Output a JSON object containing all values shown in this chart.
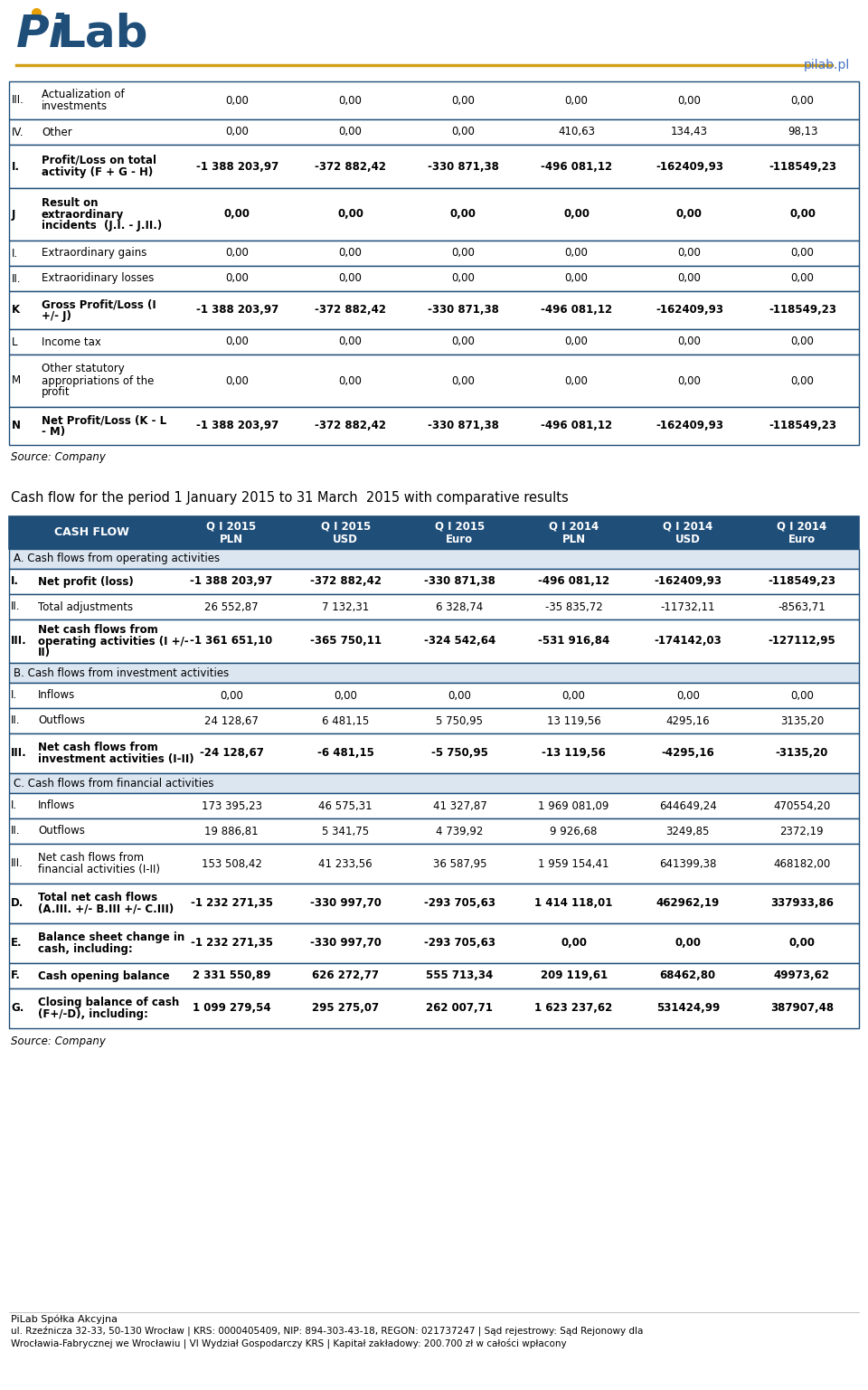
{
  "bg_color": "#FFFFFF",
  "border_color": "#1F4E79",
  "header_line_color": "#D4A017",
  "logo_url": "pilab.pl",
  "top_table_rows": [
    {
      "id": "III.",
      "label": "Actualization of\ninvestments",
      "bold": false,
      "values": [
        "0,00",
        "0,00",
        "0,00",
        "0,00",
        "0,00",
        "0,00"
      ]
    },
    {
      "id": "IV.",
      "label": "Other",
      "bold": false,
      "values": [
        "0,00",
        "0,00",
        "0,00",
        "410,63",
        "134,43",
        "98,13"
      ]
    },
    {
      "id": "I.",
      "label": "Profit/Loss on total\nactivity (F + G - H)",
      "bold": true,
      "values": [
        "-1 388 203,97",
        "-372 882,42",
        "-330 871,38",
        "-496 081,12",
        "-162409,93",
        "-118549,23"
      ]
    },
    {
      "id": "J",
      "label": "Result on\nextraordinary\nincidents  (J.I. - J.II.)",
      "bold": true,
      "values": [
        "0,00",
        "0,00",
        "0,00",
        "0,00",
        "0,00",
        "0,00"
      ]
    },
    {
      "id": "I.",
      "label": "Extraordinary gains",
      "bold": false,
      "values": [
        "0,00",
        "0,00",
        "0,00",
        "0,00",
        "0,00",
        "0,00"
      ]
    },
    {
      "id": "II.",
      "label": "Extraoridinary losses",
      "bold": false,
      "values": [
        "0,00",
        "0,00",
        "0,00",
        "0,00",
        "0,00",
        "0,00"
      ]
    },
    {
      "id": "K",
      "label": "Gross Profit/Loss (I\n+/- J)",
      "bold": true,
      "values": [
        "-1 388 203,97",
        "-372 882,42",
        "-330 871,38",
        "-496 081,12",
        "-162409,93",
        "-118549,23"
      ]
    },
    {
      "id": "L",
      "label": "Income tax",
      "bold": false,
      "values": [
        "0,00",
        "0,00",
        "0,00",
        "0,00",
        "0,00",
        "0,00"
      ]
    },
    {
      "id": "M",
      "label": "Other statutory\nappropriations of the\nprofit",
      "bold": false,
      "values": [
        "0,00",
        "0,00",
        "0,00",
        "0,00",
        "0,00",
        "0,00"
      ]
    },
    {
      "id": "N",
      "label": "Net Profit/Loss (K - L\n- M)",
      "bold": true,
      "values": [
        "-1 388 203,97",
        "-372 882,42",
        "-330 871,38",
        "-496 081,12",
        "-162409,93",
        "-118549,23"
      ]
    }
  ],
  "top_row_heights": [
    42,
    28,
    48,
    58,
    28,
    28,
    42,
    28,
    58,
    42
  ],
  "source_text1": "Source: Company",
  "cash_flow_title": "Cash flow for the period 1 January 2015 to 31 March  2015 with comparative results",
  "cf_header_bg": "#1F4E79",
  "cf_rows": [
    {
      "section": "A. Cash flows from operating activities",
      "id": "",
      "label": "",
      "bold": false,
      "values": []
    },
    {
      "section": "",
      "id": "I.",
      "label": "Net profit (loss)",
      "bold": true,
      "values": [
        "-1 388 203,97",
        "-372 882,42",
        "-330 871,38",
        "-496 081,12",
        "-162409,93",
        "-118549,23"
      ]
    },
    {
      "section": "",
      "id": "II.",
      "label": "Total adjustments",
      "bold": false,
      "values": [
        "26 552,87",
        "7 132,31",
        "6 328,74",
        "-35 835,72",
        "-11732,11",
        "-8563,71"
      ]
    },
    {
      "section": "",
      "id": "III.",
      "label": "Net cash flows from\noperating activities (I +/-\nII)",
      "bold": true,
      "values": [
        "-1 361 651,10",
        "-365 750,11",
        "-324 542,64",
        "-531 916,84",
        "-174142,03",
        "-127112,95"
      ]
    },
    {
      "section": "B. Cash flows from investment activities",
      "id": "",
      "label": "",
      "bold": false,
      "values": []
    },
    {
      "section": "",
      "id": "I.",
      "label": "Inflows",
      "bold": false,
      "values": [
        "0,00",
        "0,00",
        "0,00",
        "0,00",
        "0,00",
        "0,00"
      ]
    },
    {
      "section": "",
      "id": "II.",
      "label": "Outflows",
      "bold": false,
      "values": [
        "24 128,67",
        "6 481,15",
        "5 750,95",
        "13 119,56",
        "4295,16",
        "3135,20"
      ]
    },
    {
      "section": "",
      "id": "III.",
      "label": "Net cash flows from\ninvestment activities (I-II)",
      "bold": true,
      "values": [
        "-24 128,67",
        "-6 481,15",
        "-5 750,95",
        "-13 119,56",
        "-4295,16",
        "-3135,20"
      ]
    },
    {
      "section": "C. Cash flows from financial activities",
      "id": "",
      "label": "",
      "bold": false,
      "values": []
    },
    {
      "section": "",
      "id": "I.",
      "label": "Inflows",
      "bold": false,
      "values": [
        "173 395,23",
        "46 575,31",
        "41 327,87",
        "1 969 081,09",
        "644649,24",
        "470554,20"
      ]
    },
    {
      "section": "",
      "id": "II.",
      "label": "Outflows",
      "bold": false,
      "values": [
        "19 886,81",
        "5 341,75",
        "4 739,92",
        "9 926,68",
        "3249,85",
        "2372,19"
      ]
    },
    {
      "section": "",
      "id": "III.",
      "label": "Net cash flows from\nfinancial activities (I-II)",
      "bold": false,
      "values": [
        "153 508,42",
        "41 233,56",
        "36 587,95",
        "1 959 154,41",
        "641399,38",
        "468182,00"
      ]
    },
    {
      "section": "",
      "id": "D.",
      "label": "Total net cash flows\n(A.III. +/- B.III +/- C.III)",
      "bold": true,
      "values": [
        "-1 232 271,35",
        "-330 997,70",
        "-293 705,63",
        "1 414 118,01",
        "462962,19",
        "337933,86"
      ]
    },
    {
      "section": "",
      "id": "E.",
      "label": "Balance sheet change in\ncash, including:",
      "bold": true,
      "values": [
        "-1 232 271,35",
        "-330 997,70",
        "-293 705,63",
        "0,00",
        "0,00",
        "0,00"
      ]
    },
    {
      "section": "",
      "id": "F.",
      "label": "Cash opening balance",
      "bold": true,
      "values": [
        "2 331 550,89",
        "626 272,77",
        "555 713,34",
        "209 119,61",
        "68462,80",
        "49973,62"
      ]
    },
    {
      "section": "",
      "id": "G.",
      "label": "Closing balance of cash\n(F+/-D), including:",
      "bold": true,
      "values": [
        "1 099 279,54",
        "295 275,07",
        "262 007,71",
        "1 623 237,62",
        "531424,99",
        "387907,48"
      ]
    }
  ],
  "cf_row_heights": [
    22,
    28,
    28,
    48,
    22,
    28,
    28,
    44,
    22,
    28,
    28,
    44,
    44,
    44,
    28,
    44
  ],
  "source_text2": "Source: Company",
  "footer_company": "PiLab Spółka Akcyjna",
  "footer_line1": "ul. Rzeźnicza 32-33, 50-130 Wrocław | KRS: 0000405409, NIP: 894-303-43-18, REGON: 021737247 | Sąd rejestrowy: Sąd Rejonowy dla",
  "footer_line2": "Wrocławia-Fabrycznej we Wrocławiu | VI Wydział Gospodarczy KRS | Kapitał zakładowy: 200.700 zł w całości wpłacony"
}
